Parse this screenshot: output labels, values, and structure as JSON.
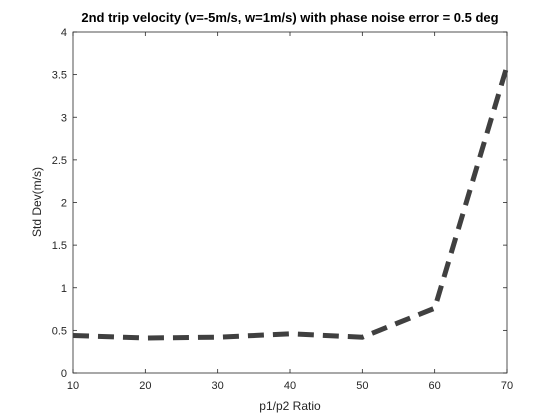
{
  "chart_data": {
    "type": "line",
    "title": "2nd trip velocity (v=-5m/s, w=1m/s) with phase noise error = 0.5 deg",
    "xlabel": "p1/p2 Ratio",
    "ylabel": "Std Dev(m/s)",
    "xlim": [
      10,
      70
    ],
    "ylim": [
      0,
      4
    ],
    "xticks": [
      "10",
      "20",
      "30",
      "40",
      "50",
      "60",
      "70"
    ],
    "yticks": [
      "0",
      "0.5",
      "1",
      "1.5",
      "2",
      "2.5",
      "3",
      "3.5",
      "4"
    ],
    "grid": false,
    "series": [
      {
        "line_style": "dashed",
        "color": "#404040",
        "x": [
          10,
          20,
          30,
          40,
          50,
          60,
          70
        ],
        "y": [
          0.44,
          0.41,
          0.42,
          0.46,
          0.42,
          0.76,
          3.6
        ]
      }
    ]
  }
}
